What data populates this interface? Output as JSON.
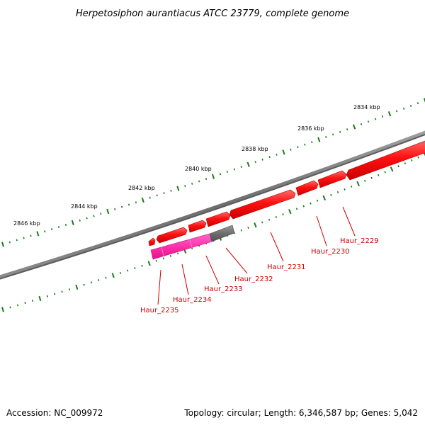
{
  "title": "Herpetosiphon aurantiacus ATCC 23779, complete genome",
  "footer": {
    "accession": "Accession: NC_009972",
    "summary": "Topology: circular; Length: 6,346,587 bp; Genes: 5,042"
  },
  "kbp_labels": [
    "2834 kbp",
    "2836 kbp",
    "2838 kbp",
    "2840 kbp",
    "2842 kbp",
    "2844 kbp",
    "2846 kbp"
  ],
  "gene_labels": [
    "Haur_2229",
    "Haur_2230",
    "Haur_2231",
    "Haur_2232",
    "Haur_2233",
    "Haur_2234",
    "Haur_2235"
  ],
  "colors": {
    "backbone": "#7a7a7a",
    "tick": "#1a7a1a",
    "forward_gene": "#ff1a1a",
    "grey_gene": "#707070",
    "reverse_gene": "#ff33aa",
    "label": "#cc0000"
  }
}
